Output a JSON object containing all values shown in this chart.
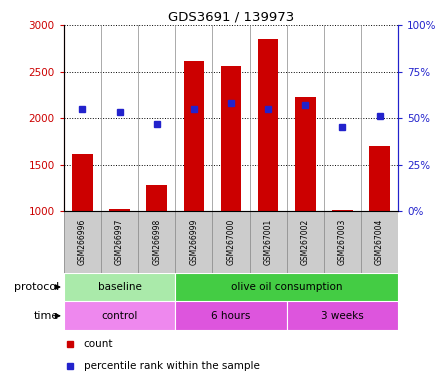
{
  "title": "GDS3691 / 139973",
  "samples": [
    "GSM266996",
    "GSM266997",
    "GSM266998",
    "GSM266999",
    "GSM267000",
    "GSM267001",
    "GSM267002",
    "GSM267003",
    "GSM267004"
  ],
  "counts": [
    1610,
    1020,
    1280,
    2610,
    2560,
    2850,
    2230,
    1010,
    1700
  ],
  "percentile_ranks": [
    55,
    53,
    47,
    55,
    58,
    55,
    57,
    45,
    51
  ],
  "ylim_left": [
    1000,
    3000
  ],
  "ylim_right": [
    0,
    100
  ],
  "yticks_left": [
    1000,
    1500,
    2000,
    2500,
    3000
  ],
  "yticks_right": [
    0,
    25,
    50,
    75,
    100
  ],
  "bar_color": "#cc0000",
  "dot_color": "#2222cc",
  "protocol_labels": [
    {
      "label": "baseline",
      "start": 0,
      "end": 3,
      "color": "#aaeaaa"
    },
    {
      "label": "olive oil consumption",
      "start": 3,
      "end": 9,
      "color": "#44cc44"
    }
  ],
  "time_labels": [
    {
      "label": "control",
      "start": 0,
      "end": 3,
      "color": "#ee88ee"
    },
    {
      "label": "6 hours",
      "start": 3,
      "end": 6,
      "color": "#dd55dd"
    },
    {
      "label": "3 weeks",
      "start": 6,
      "end": 9,
      "color": "#dd55dd"
    }
  ],
  "legend_count_label": "count",
  "legend_pct_label": "percentile rank within the sample",
  "left_axis_color": "#cc0000",
  "right_axis_color": "#2222cc",
  "sample_row_color": "#cccccc",
  "sample_border_color": "#999999"
}
